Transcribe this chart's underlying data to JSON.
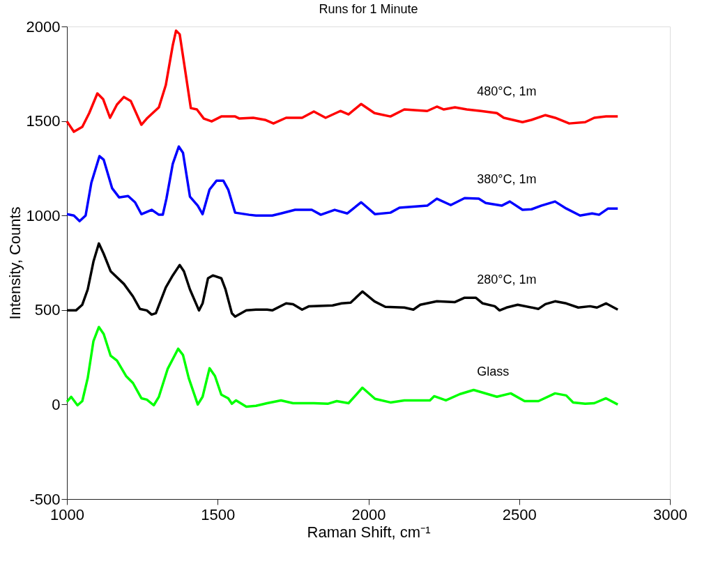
{
  "chart_data": {
    "type": "line",
    "title": "Runs for 1 Minute",
    "xlabel": "Raman Shift, cm⁻¹",
    "ylabel": "Intensity, Counts",
    "xlim": [
      1000,
      3000
    ],
    "xticks": [
      1000,
      1500,
      2000,
      2500,
      3000
    ],
    "ylim": [
      -500,
      2000
    ],
    "yticks": [
      -500,
      0,
      500,
      1000,
      1500,
      2000
    ],
    "grid": false,
    "legend": false,
    "line_style": "solid",
    "marker": "none",
    "series": [
      {
        "name": "480°C, 1m",
        "color": "#ff0000",
        "x": [
          1000,
          1023,
          1051,
          1074,
          1101,
          1120,
          1143,
          1166,
          1189,
          1212,
          1247,
          1265,
          1305,
          1328,
          1351,
          1362,
          1374,
          1388,
          1411,
          1431,
          1454,
          1480,
          1512,
          1558,
          1572,
          1618,
          1657,
          1685,
          1727,
          1780,
          1819,
          1858,
          1907,
          1934,
          1976,
          2020,
          2073,
          2119,
          2195,
          2227,
          2250,
          2287,
          2326,
          2373,
          2426,
          2449,
          2511,
          2541,
          2587,
          2619,
          2666,
          2719,
          2749,
          2788,
          2827
        ],
        "values": [
          1498,
          1443,
          1469,
          1542,
          1646,
          1616,
          1517,
          1587,
          1627,
          1605,
          1480,
          1513,
          1572,
          1690,
          1900,
          1978,
          1959,
          1812,
          1568,
          1561,
          1513,
          1498,
          1524,
          1524,
          1513,
          1517,
          1506,
          1487,
          1517,
          1517,
          1550,
          1517,
          1553,
          1535,
          1590,
          1542,
          1524,
          1561,
          1553,
          1576,
          1561,
          1572,
          1561,
          1553,
          1542,
          1517,
          1494,
          1506,
          1531,
          1517,
          1487,
          1494,
          1517,
          1524,
          1524
        ]
      },
      {
        "name": "380°C, 1m",
        "color": "#0000ff",
        "x": [
          1000,
          1023,
          1042,
          1062,
          1081,
          1108,
          1122,
          1150,
          1173,
          1203,
          1226,
          1247,
          1281,
          1305,
          1318,
          1330,
          1351,
          1371,
          1385,
          1408,
          1434,
          1450,
          1473,
          1496,
          1519,
          1535,
          1558,
          1604,
          1627,
          1681,
          1710,
          1757,
          1812,
          1842,
          1888,
          1930,
          1976,
          2022,
          2073,
          2103,
          2195,
          2227,
          2273,
          2319,
          2366,
          2389,
          2442,
          2469,
          2511,
          2541,
          2573,
          2619,
          2656,
          2702,
          2742,
          2765,
          2795,
          2827
        ],
        "values": [
          1007,
          1000,
          970,
          1000,
          1173,
          1314,
          1295,
          1144,
          1096,
          1103,
          1070,
          1007,
          1030,
          1004,
          1004,
          1089,
          1273,
          1365,
          1332,
          1100,
          1052,
          1007,
          1137,
          1184,
          1184,
          1137,
          1015,
          1004,
          1000,
          1000,
          1011,
          1030,
          1030,
          1004,
          1030,
          1011,
          1070,
          1007,
          1015,
          1041,
          1052,
          1089,
          1055,
          1092,
          1089,
          1066,
          1052,
          1074,
          1030,
          1033,
          1052,
          1074,
          1037,
          1000,
          1011,
          1004,
          1037,
          1037
        ]
      },
      {
        "name": "280°C, 1m",
        "color": "#000000",
        "x": [
          1000,
          1030,
          1051,
          1069,
          1088,
          1106,
          1122,
          1145,
          1189,
          1219,
          1242,
          1265,
          1281,
          1295,
          1328,
          1351,
          1374,
          1388,
          1408,
          1438,
          1450,
          1468,
          1484,
          1512,
          1526,
          1547,
          1558,
          1595,
          1627,
          1664,
          1681,
          1727,
          1750,
          1780,
          1803,
          1881,
          1911,
          1941,
          1980,
          2020,
          2056,
          2119,
          2149,
          2172,
          2227,
          2287,
          2319,
          2356,
          2379,
          2419,
          2435,
          2458,
          2495,
          2564,
          2587,
          2619,
          2656,
          2696,
          2735,
          2758,
          2788,
          2827
        ],
        "values": [
          498,
          498,
          528,
          609,
          756,
          852,
          797,
          705,
          638,
          572,
          506,
          498,
          476,
          483,
          620,
          683,
          738,
          705,
          609,
          498,
          535,
          668,
          683,
          668,
          609,
          483,
          465,
          498,
          502,
          502,
          498,
          535,
          531,
          502,
          520,
          524,
          535,
          539,
          598,
          546,
          517,
          513,
          502,
          528,
          546,
          542,
          565,
          565,
          535,
          520,
          498,
          513,
          528,
          506,
          531,
          546,
          535,
          513,
          520,
          513,
          535,
          502
        ]
      },
      {
        "name": "Glass",
        "color": "#00ff00",
        "x": [
          1000,
          1014,
          1035,
          1051,
          1069,
          1088,
          1106,
          1122,
          1145,
          1166,
          1196,
          1219,
          1247,
          1265,
          1288,
          1305,
          1334,
          1369,
          1385,
          1404,
          1434,
          1450,
          1473,
          1491,
          1512,
          1535,
          1547,
          1561,
          1595,
          1627,
          1664,
          1710,
          1750,
          1819,
          1865,
          1895,
          1934,
          1980,
          2022,
          2073,
          2119,
          2204,
          2218,
          2257,
          2303,
          2349,
          2373,
          2426,
          2472,
          2518,
          2564,
          2619,
          2656,
          2679,
          2719,
          2749,
          2788,
          2827
        ],
        "values": [
          15,
          41,
          -4,
          18,
          140,
          336,
          410,
          373,
          258,
          232,
          151,
          114,
          33,
          26,
          -4,
          41,
          188,
          295,
          262,
          140,
          0,
          41,
          192,
          151,
          52,
          33,
          4,
          22,
          -11,
          -7,
          7,
          22,
          7,
          7,
          4,
          18,
          7,
          89,
          30,
          11,
          22,
          22,
          44,
          22,
          55,
          77,
          66,
          41,
          59,
          18,
          18,
          59,
          48,
          11,
          4,
          7,
          33,
          0
        ]
      }
    ]
  }
}
